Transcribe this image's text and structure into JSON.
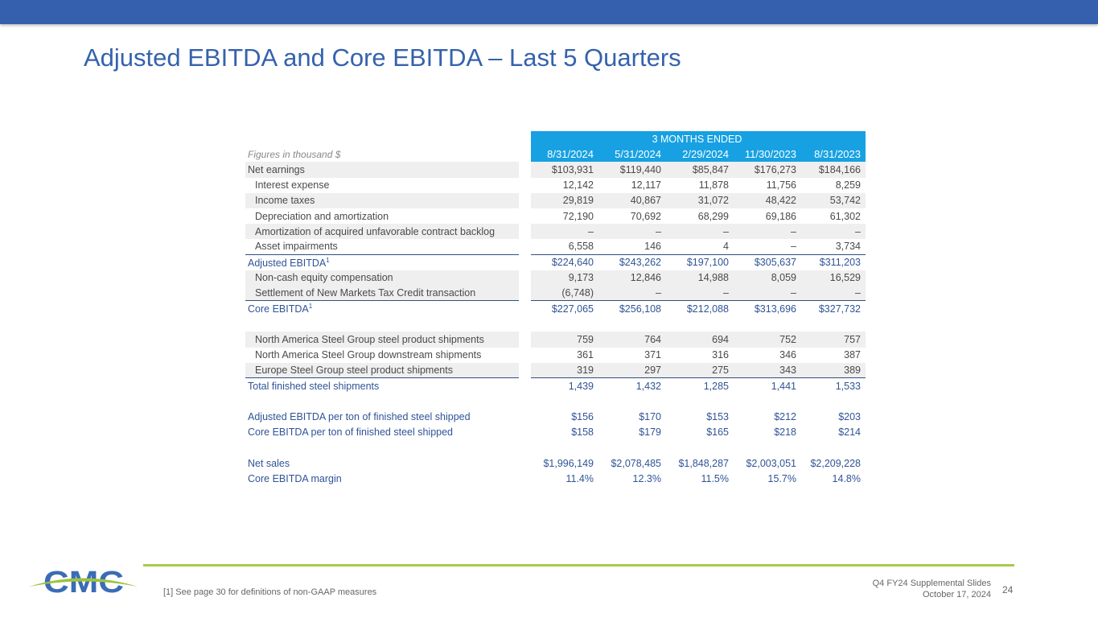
{
  "header": {
    "title": "Adjusted EBITDA and Core EBITDA – Last 5 Quarters"
  },
  "table": {
    "group_header": "3 MONTHS ENDED",
    "units_label": "Figures in thousand $",
    "columns": [
      "8/31/2024",
      "5/31/2024",
      "2/29/2024",
      "11/30/2023",
      "8/31/2023"
    ],
    "rows": [
      {
        "label": "Net earnings",
        "values": [
          "$103,931",
          "$119,440",
          "$85,847",
          "$176,273",
          "$184,166"
        ]
      },
      {
        "label": "Interest expense",
        "values": [
          "12,142",
          "12,117",
          "11,878",
          "11,756",
          "8,259"
        ]
      },
      {
        "label": "Income taxes",
        "values": [
          "29,819",
          "40,867",
          "31,072",
          "48,422",
          "53,742"
        ]
      },
      {
        "label": "Depreciation and amortization",
        "values": [
          "72,190",
          "70,692",
          "68,299",
          "69,186",
          "61,302"
        ]
      },
      {
        "label": "Amortization of acquired unfavorable contract backlog",
        "values": [
          "–",
          "–",
          "–",
          "–",
          "–"
        ]
      },
      {
        "label": "Asset impairments",
        "values": [
          "6,558",
          "146",
          "4",
          "–",
          "3,734"
        ]
      },
      {
        "label": "Adjusted EBITDA",
        "sup": "1",
        "values": [
          "$224,640",
          "$243,262",
          "$197,100",
          "$305,637",
          "$311,203"
        ]
      },
      {
        "label": "Non-cash equity compensation",
        "values": [
          "9,173",
          "12,846",
          "14,988",
          "8,059",
          "16,529"
        ]
      },
      {
        "label": "Settlement of New Markets Tax Credit transaction",
        "values": [
          "(6,748)",
          "–",
          "–",
          "–",
          "–"
        ]
      },
      {
        "label": "Core EBITDA",
        "sup": "1",
        "values": [
          "$227,065",
          "$256,108",
          "$212,088",
          "$313,696",
          "$327,732"
        ]
      },
      {
        "label": "North America Steel Group steel product shipments",
        "values": [
          "759",
          "764",
          "694",
          "752",
          "757"
        ]
      },
      {
        "label": "North America Steel Group downstream shipments",
        "values": [
          "361",
          "371",
          "316",
          "346",
          "387"
        ]
      },
      {
        "label": "Europe Steel Group steel product shipments",
        "values": [
          "319",
          "297",
          "275",
          "343",
          "389"
        ]
      },
      {
        "label": "Total finished steel shipments",
        "values": [
          "1,439",
          "1,432",
          "1,285",
          "1,441",
          "1,533"
        ]
      },
      {
        "label": "Adjusted EBITDA per ton of finished steel shipped",
        "values": [
          "$156",
          "$170",
          "$153",
          "$212",
          "$203"
        ]
      },
      {
        "label": "Core EBITDA per ton of finished steel shipped",
        "values": [
          "$158",
          "$179",
          "$165",
          "$218",
          "$214"
        ]
      },
      {
        "label": "Net sales",
        "values": [
          "$1,996,149",
          "$2,078,485",
          "$1,848,287",
          "$2,003,051",
          "$2,209,228"
        ]
      },
      {
        "label": "Core EBITDA margin",
        "values": [
          "11.4%",
          "12.3%",
          "11.5%",
          "15.7%",
          "14.8%"
        ]
      }
    ]
  },
  "footer": {
    "note": "[1] See page 30 for definitions of non-GAAP measures",
    "deck": "Q4 FY24 Supplemental Slides",
    "date": "October 17, 2024",
    "page": "24",
    "logo_text": "CMC"
  },
  "colors": {
    "brand_blue": "#3460ae",
    "header_cyan": "#17a1e3",
    "accent_green": "#a9c94b"
  }
}
